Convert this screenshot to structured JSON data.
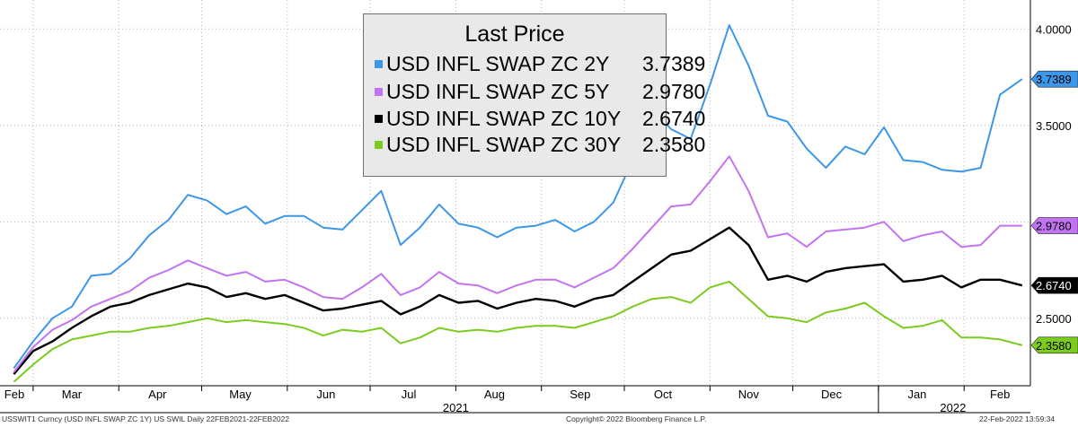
{
  "chart_data": {
    "type": "line",
    "title": "",
    "x_axis": {
      "month_ticks": [
        "Feb",
        "Mar",
        "Apr",
        "May",
        "Jun",
        "Jul",
        "Aug",
        "Sep",
        "Oct",
        "Nov",
        "Dec",
        "Jan",
        "Feb"
      ],
      "year_labels": [
        "2021",
        "2022"
      ]
    },
    "y_axis": {
      "ticks": [
        "4.0000",
        "3.5000",
        "2.5000"
      ],
      "ylim": [
        2.15,
        4.15
      ],
      "grid": true
    },
    "legend": {
      "title": "Last Price",
      "placement": "top-center",
      "entries": [
        {
          "name": "USD INFL SWAP ZC 2Y",
          "value": "3.7389"
        },
        {
          "name": "USD INFL SWAP ZC 5Y",
          "value": "2.9780"
        },
        {
          "name": "USD INFL SWAP ZC 10Y",
          "value": "2.6740"
        },
        {
          "name": "USD INFL SWAP ZC 30Y",
          "value": "2.3580"
        }
      ]
    },
    "series": [
      {
        "name": "USD INFL SWAP ZC 2Y",
        "color": "#3d97e8",
        "last_label": "3.7389",
        "x": [
          "2021-02-22",
          "2021-03-01",
          "2021-03-08",
          "2021-03-15",
          "2021-03-22",
          "2021-03-29",
          "2021-04-05",
          "2021-04-12",
          "2021-04-19",
          "2021-04-26",
          "2021-05-03",
          "2021-05-10",
          "2021-05-17",
          "2021-05-24",
          "2021-05-31",
          "2021-06-07",
          "2021-06-14",
          "2021-06-21",
          "2021-06-28",
          "2021-07-05",
          "2021-07-12",
          "2021-07-19",
          "2021-07-26",
          "2021-08-02",
          "2021-08-09",
          "2021-08-16",
          "2021-08-23",
          "2021-08-30",
          "2021-09-06",
          "2021-09-13",
          "2021-09-20",
          "2021-09-27",
          "2021-10-04",
          "2021-10-11",
          "2021-10-18",
          "2021-10-25",
          "2021-11-01",
          "2021-11-08",
          "2021-11-15",
          "2021-11-22",
          "2021-11-29",
          "2021-12-06",
          "2021-12-13",
          "2021-12-20",
          "2021-12-27",
          "2022-01-03",
          "2022-01-10",
          "2022-01-17",
          "2022-01-24",
          "2022-01-31",
          "2022-02-07",
          "2022-02-14",
          "2022-02-22"
        ],
        "values": [
          2.24,
          2.38,
          2.5,
          2.56,
          2.72,
          2.73,
          2.81,
          2.93,
          3.01,
          3.14,
          3.11,
          3.04,
          3.08,
          2.99,
          3.03,
          3.03,
          2.97,
          2.96,
          3.06,
          3.16,
          2.88,
          2.97,
          3.09,
          2.99,
          2.97,
          2.92,
          2.97,
          2.98,
          3.01,
          2.95,
          3.0,
          3.1,
          3.32,
          3.58,
          3.48,
          3.43,
          3.71,
          4.02,
          3.81,
          3.55,
          3.52,
          3.38,
          3.28,
          3.39,
          3.35,
          3.49,
          3.32,
          3.31,
          3.27,
          3.26,
          3.28,
          3.66,
          3.74
        ]
      },
      {
        "name": "USD INFL SWAP ZC 5Y",
        "color": "#c273f2",
        "last_label": "2.9780",
        "x": [
          "2021-02-22",
          "2021-03-01",
          "2021-03-08",
          "2021-03-15",
          "2021-03-22",
          "2021-03-29",
          "2021-04-05",
          "2021-04-12",
          "2021-04-19",
          "2021-04-26",
          "2021-05-03",
          "2021-05-10",
          "2021-05-17",
          "2021-05-24",
          "2021-05-31",
          "2021-06-07",
          "2021-06-14",
          "2021-06-21",
          "2021-06-28",
          "2021-07-05",
          "2021-07-12",
          "2021-07-19",
          "2021-07-26",
          "2021-08-02",
          "2021-08-09",
          "2021-08-16",
          "2021-08-23",
          "2021-08-30",
          "2021-09-06",
          "2021-09-13",
          "2021-09-20",
          "2021-09-27",
          "2021-10-04",
          "2021-10-11",
          "2021-10-18",
          "2021-10-25",
          "2021-11-01",
          "2021-11-08",
          "2021-11-15",
          "2021-11-22",
          "2021-11-29",
          "2021-12-06",
          "2021-12-13",
          "2021-12-20",
          "2021-12-27",
          "2022-01-03",
          "2022-01-10",
          "2022-01-17",
          "2022-01-24",
          "2022-01-31",
          "2022-02-07",
          "2022-02-14",
          "2022-02-22"
        ],
        "values": [
          2.22,
          2.35,
          2.44,
          2.49,
          2.56,
          2.6,
          2.64,
          2.71,
          2.75,
          2.8,
          2.76,
          2.72,
          2.74,
          2.69,
          2.7,
          2.66,
          2.61,
          2.6,
          2.66,
          2.73,
          2.62,
          2.66,
          2.74,
          2.68,
          2.67,
          2.63,
          2.67,
          2.7,
          2.7,
          2.66,
          2.71,
          2.76,
          2.86,
          2.97,
          3.08,
          3.09,
          3.21,
          3.34,
          3.16,
          2.92,
          2.94,
          2.87,
          2.95,
          2.96,
          2.97,
          3.0,
          2.9,
          2.93,
          2.95,
          2.87,
          2.88,
          2.98,
          2.98
        ]
      },
      {
        "name": "USD INFL SWAP ZC 10Y",
        "color": "#000000",
        "last_label": "2.6740",
        "x": [
          "2021-02-22",
          "2021-03-01",
          "2021-03-08",
          "2021-03-15",
          "2021-03-22",
          "2021-03-29",
          "2021-04-05",
          "2021-04-12",
          "2021-04-19",
          "2021-04-26",
          "2021-05-03",
          "2021-05-10",
          "2021-05-17",
          "2021-05-24",
          "2021-05-31",
          "2021-06-07",
          "2021-06-14",
          "2021-06-21",
          "2021-06-28",
          "2021-07-05",
          "2021-07-12",
          "2021-07-19",
          "2021-07-26",
          "2021-08-02",
          "2021-08-09",
          "2021-08-16",
          "2021-08-23",
          "2021-08-30",
          "2021-09-06",
          "2021-09-13",
          "2021-09-20",
          "2021-09-27",
          "2021-10-04",
          "2021-10-11",
          "2021-10-18",
          "2021-10-25",
          "2021-11-01",
          "2021-11-08",
          "2021-11-15",
          "2021-11-22",
          "2021-11-29",
          "2021-12-06",
          "2021-12-13",
          "2021-12-20",
          "2021-12-27",
          "2022-01-03",
          "2022-01-10",
          "2022-01-17",
          "2022-01-24",
          "2022-01-31",
          "2022-02-07",
          "2022-02-14",
          "2022-02-22"
        ],
        "values": [
          2.21,
          2.33,
          2.38,
          2.45,
          2.51,
          2.56,
          2.58,
          2.62,
          2.65,
          2.68,
          2.66,
          2.61,
          2.63,
          2.6,
          2.62,
          2.58,
          2.54,
          2.55,
          2.57,
          2.59,
          2.52,
          2.56,
          2.62,
          2.58,
          2.59,
          2.55,
          2.58,
          2.6,
          2.59,
          2.56,
          2.6,
          2.62,
          2.69,
          2.76,
          2.83,
          2.85,
          2.91,
          2.97,
          2.88,
          2.7,
          2.72,
          2.69,
          2.74,
          2.76,
          2.77,
          2.78,
          2.69,
          2.7,
          2.72,
          2.66,
          2.7,
          2.7,
          2.67
        ]
      },
      {
        "name": "USD INFL SWAP ZC 30Y",
        "color": "#7ccb1f",
        "last_label": "2.3580",
        "x": [
          "2021-02-22",
          "2021-03-01",
          "2021-03-08",
          "2021-03-15",
          "2021-03-22",
          "2021-03-29",
          "2021-04-05",
          "2021-04-12",
          "2021-04-19",
          "2021-04-26",
          "2021-05-03",
          "2021-05-10",
          "2021-05-17",
          "2021-05-24",
          "2021-05-31",
          "2021-06-07",
          "2021-06-14",
          "2021-06-21",
          "2021-06-28",
          "2021-07-05",
          "2021-07-12",
          "2021-07-19",
          "2021-07-26",
          "2021-08-02",
          "2021-08-09",
          "2021-08-16",
          "2021-08-23",
          "2021-08-30",
          "2021-09-06",
          "2021-09-13",
          "2021-09-20",
          "2021-09-27",
          "2021-10-04",
          "2021-10-11",
          "2021-10-18",
          "2021-10-25",
          "2021-11-01",
          "2021-11-08",
          "2021-11-15",
          "2021-11-22",
          "2021-11-29",
          "2021-12-06",
          "2021-12-13",
          "2021-12-20",
          "2021-12-27",
          "2022-01-03",
          "2022-01-10",
          "2022-01-17",
          "2022-01-24",
          "2022-01-31",
          "2022-02-07",
          "2022-02-14",
          "2022-02-22"
        ],
        "values": [
          2.17,
          2.26,
          2.34,
          2.39,
          2.41,
          2.43,
          2.43,
          2.45,
          2.46,
          2.48,
          2.5,
          2.48,
          2.49,
          2.48,
          2.47,
          2.45,
          2.41,
          2.44,
          2.43,
          2.45,
          2.37,
          2.4,
          2.45,
          2.43,
          2.44,
          2.43,
          2.45,
          2.46,
          2.46,
          2.45,
          2.48,
          2.51,
          2.56,
          2.6,
          2.61,
          2.58,
          2.66,
          2.69,
          2.6,
          2.51,
          2.5,
          2.48,
          2.53,
          2.55,
          2.58,
          2.51,
          2.45,
          2.46,
          2.49,
          2.4,
          2.4,
          2.39,
          2.36
        ]
      }
    ]
  },
  "footer": {
    "left": "USSWIT1 Curncy (USD INFL SWAP ZC 1Y) US SWIL  Daily 22FEB2021-22FEB2022",
    "center": "Copyright© 2022 Bloomberg Finance L.P.",
    "right": "22-Feb-2022 13:59:34"
  }
}
